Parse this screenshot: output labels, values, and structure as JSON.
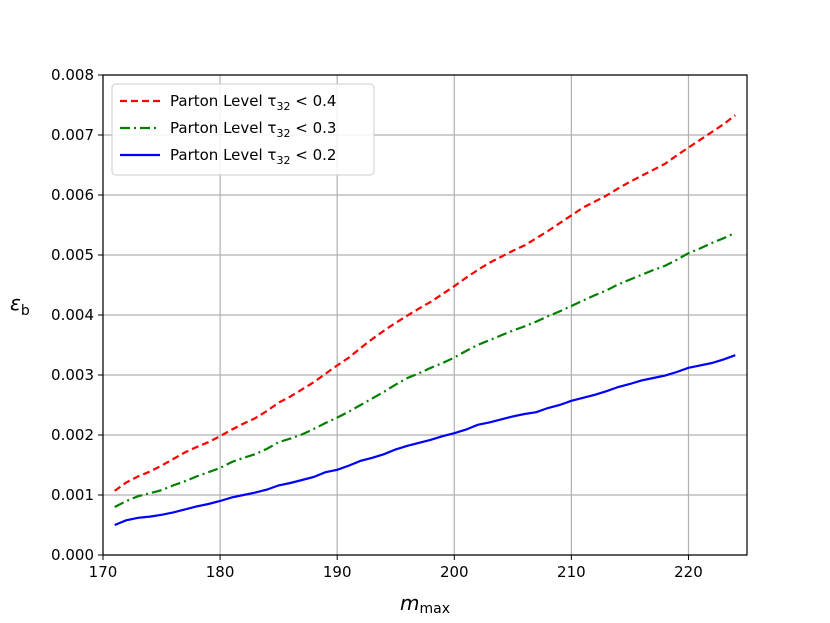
{
  "chart_data": {
    "type": "line",
    "xlabel": "m",
    "xlabel_sub": "max",
    "ylabel": "ε",
    "ylabel_sub": "b",
    "xlim": [
      170,
      225
    ],
    "ylim": [
      0,
      0.008
    ],
    "xticks": [
      170,
      180,
      190,
      200,
      210,
      220
    ],
    "xtick_labels": [
      "170",
      "180",
      "190",
      "200",
      "210",
      "220"
    ],
    "yticks": [
      0,
      0.001,
      0.002,
      0.003,
      0.004,
      0.005,
      0.006,
      0.007,
      0.008
    ],
    "ytick_labels": [
      "0.000",
      "0.001",
      "0.002",
      "0.003",
      "0.004",
      "0.005",
      "0.006",
      "0.007",
      "0.008"
    ],
    "grid": true,
    "legend_position": "top-left",
    "x": [
      171,
      172,
      173,
      174,
      175,
      176,
      177,
      178,
      179,
      180,
      181,
      182,
      183,
      184,
      185,
      186,
      187,
      188,
      189,
      190,
      191,
      192,
      193,
      194,
      195,
      196,
      197,
      198,
      199,
      200,
      201,
      202,
      203,
      204,
      205,
      206,
      207,
      208,
      209,
      210,
      211,
      212,
      213,
      214,
      215,
      216,
      217,
      218,
      219,
      220,
      221,
      222,
      223,
      224
    ],
    "series": [
      {
        "name_prefix": "Parton Level τ",
        "name_sub": "32",
        "name_suffix": " < 0.4",
        "color": "#ff0000",
        "style": "dashed",
        "values": [
          0.00107,
          0.00121,
          0.00131,
          0.00139,
          0.00149,
          0.0016,
          0.00171,
          0.0018,
          0.00188,
          0.00198,
          0.00209,
          0.00219,
          0.00228,
          0.0024,
          0.00254,
          0.00264,
          0.00276,
          0.00288,
          0.00302,
          0.00316,
          0.00329,
          0.00345,
          0.0036,
          0.00374,
          0.00387,
          0.00399,
          0.00411,
          0.00422,
          0.00435,
          0.00448,
          0.00462,
          0.00475,
          0.00487,
          0.00497,
          0.00507,
          0.00516,
          0.00528,
          0.0054,
          0.00553,
          0.00566,
          0.00579,
          0.00589,
          0.00599,
          0.00611,
          0.00622,
          0.00632,
          0.00642,
          0.00652,
          0.00666,
          0.00679,
          0.00692,
          0.00705,
          0.00718,
          0.00733
        ]
      },
      {
        "name_prefix": "Parton Level τ",
        "name_sub": "32",
        "name_suffix": " < 0.3",
        "color": "#008000",
        "style": "dashdot",
        "values": [
          0.0008,
          0.0009,
          0.00098,
          0.00103,
          0.00108,
          0.00116,
          0.00123,
          0.00131,
          0.00138,
          0.00145,
          0.00155,
          0.00162,
          0.00168,
          0.00177,
          0.00188,
          0.00194,
          0.00201,
          0.0021,
          0.0022,
          0.00229,
          0.00239,
          0.0025,
          0.00261,
          0.00272,
          0.00284,
          0.00295,
          0.00303,
          0.00312,
          0.0032,
          0.00329,
          0.0034,
          0.0035,
          0.00358,
          0.00366,
          0.00374,
          0.00381,
          0.00389,
          0.00398,
          0.00406,
          0.00415,
          0.00424,
          0.00433,
          0.00441,
          0.00451,
          0.00459,
          0.00467,
          0.00475,
          0.00482,
          0.00492,
          0.00503,
          0.00511,
          0.0052,
          0.00528,
          0.00537
        ]
      },
      {
        "name_prefix": "Parton Level τ",
        "name_sub": "32",
        "name_suffix": " < 0.2",
        "color": "#0000ff",
        "style": "solid",
        "values": [
          0.0005,
          0.00058,
          0.00062,
          0.00064,
          0.00067,
          0.00071,
          0.00076,
          0.00081,
          0.00085,
          0.0009,
          0.00096,
          0.001,
          0.00104,
          0.00109,
          0.00116,
          0.0012,
          0.00125,
          0.0013,
          0.00138,
          0.00142,
          0.00149,
          0.00157,
          0.00162,
          0.00168,
          0.00176,
          0.00182,
          0.00187,
          0.00192,
          0.00198,
          0.00203,
          0.00209,
          0.00217,
          0.00221,
          0.00226,
          0.00231,
          0.00235,
          0.00238,
          0.00245,
          0.0025,
          0.00257,
          0.00262,
          0.00267,
          0.00273,
          0.0028,
          0.00285,
          0.00291,
          0.00295,
          0.00299,
          0.00305,
          0.00312,
          0.00316,
          0.0032,
          0.00326,
          0.00333
        ]
      }
    ]
  }
}
